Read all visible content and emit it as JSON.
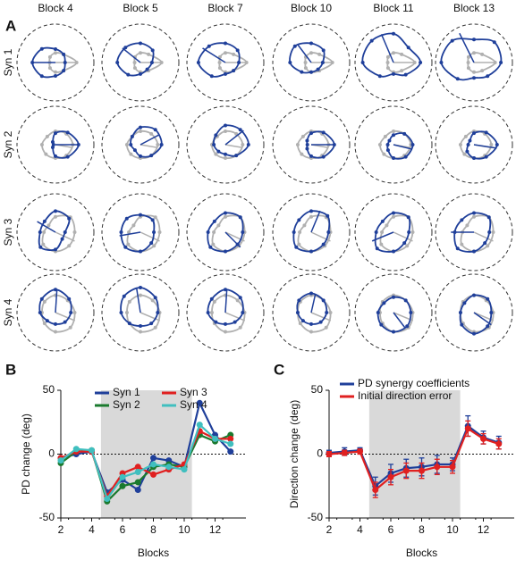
{
  "chart_data": [
    {
      "type": "polar",
      "label": "A",
      "columns": [
        "Block 4",
        "Block 5",
        "Block 7",
        "Block 10",
        "Block 11",
        "Block 13"
      ],
      "rows": [
        "Syn 1",
        "Syn 2",
        "Syn 3",
        "Syn 4"
      ],
      "rlim": [
        0,
        1
      ],
      "baseline_color": "#b0b0b0",
      "color": "#1f3f9a",
      "baseline": [
        [
          0.55,
          0.3,
          0.25,
          0.2,
          0.15,
          0.2,
          0.25,
          0.3
        ],
        [
          0.45,
          0.4,
          0.35,
          0.3,
          0.35,
          0.35,
          0.35,
          0.4
        ],
        [
          0.5,
          0.55,
          0.4,
          0.25,
          0.3,
          0.45,
          0.5,
          0.5
        ],
        [
          0.5,
          0.45,
          0.45,
          0.4,
          0.35,
          0.4,
          0.5,
          0.55
        ]
      ],
      "values": [
        [
          [
            0.25,
            0.3,
            0.35,
            0.5,
            0.6,
            0.5,
            0.35,
            0.3
          ],
          [
            0.3,
            0.45,
            0.5,
            0.55,
            0.6,
            0.45,
            0.3,
            0.25
          ],
          [
            0.35,
            0.45,
            0.5,
            0.6,
            0.7,
            0.5,
            0.3,
            0.3
          ],
          [
            0.3,
            0.45,
            0.5,
            0.6,
            0.55,
            0.35,
            0.25,
            0.25
          ],
          [
            0.7,
            0.55,
            0.75,
            0.8,
            0.8,
            0.5,
            0.3,
            0.45
          ],
          [
            0.7,
            0.75,
            0.6,
            0.8,
            0.85,
            0.6,
            0.4,
            0.5
          ]
        ],
        [
          [
            0.6,
            0.45,
            0.3,
            0.1,
            0.05,
            0.1,
            0.3,
            0.45
          ],
          [
            0.55,
            0.55,
            0.45,
            0.3,
            0.25,
            0.2,
            0.3,
            0.4
          ],
          [
            0.6,
            0.55,
            0.5,
            0.35,
            0.3,
            0.25,
            0.25,
            0.4
          ],
          [
            0.6,
            0.45,
            0.3,
            0.15,
            0.1,
            0.15,
            0.3,
            0.45
          ],
          [
            0.5,
            0.4,
            0.25,
            0.15,
            0.15,
            0.2,
            0.35,
            0.45
          ],
          [
            0.6,
            0.45,
            0.3,
            0.15,
            0.15,
            0.25,
            0.35,
            0.45
          ]
        ],
        [
          [
            0.25,
            0.5,
            0.55,
            0.4,
            0.4,
            0.55,
            0.45,
            0.25
          ],
          [
            0.35,
            0.45,
            0.45,
            0.5,
            0.5,
            0.55,
            0.5,
            0.4
          ],
          [
            0.45,
            0.55,
            0.5,
            0.4,
            0.45,
            0.55,
            0.5,
            0.45
          ],
          [
            0.45,
            0.6,
            0.55,
            0.45,
            0.45,
            0.55,
            0.5,
            0.45
          ],
          [
            0.4,
            0.55,
            0.5,
            0.4,
            0.45,
            0.6,
            0.5,
            0.4
          ],
          [
            0.4,
            0.55,
            0.5,
            0.45,
            0.5,
            0.6,
            0.5,
            0.4
          ]
        ],
        [
          [
            0.4,
            0.5,
            0.6,
            0.5,
            0.4,
            0.3,
            0.3,
            0.35
          ],
          [
            0.45,
            0.55,
            0.65,
            0.6,
            0.5,
            0.4,
            0.35,
            0.4
          ],
          [
            0.45,
            0.55,
            0.6,
            0.5,
            0.45,
            0.35,
            0.3,
            0.35
          ],
          [
            0.4,
            0.45,
            0.5,
            0.45,
            0.35,
            0.3,
            0.3,
            0.35
          ],
          [
            0.45,
            0.45,
            0.4,
            0.35,
            0.4,
            0.45,
            0.5,
            0.5
          ],
          [
            0.45,
            0.5,
            0.45,
            0.35,
            0.35,
            0.45,
            0.55,
            0.5
          ]
        ]
      ]
    },
    {
      "type": "line",
      "label": "B",
      "xlabel": "Blocks",
      "ylabel": "PD change (deg)",
      "x": [
        2,
        3,
        4,
        5,
        6,
        7,
        8,
        9,
        10,
        11,
        12,
        13
      ],
      "xlim": [
        2,
        14
      ],
      "xticks": [
        2,
        4,
        6,
        8,
        10,
        12
      ],
      "ylim": [
        -50,
        50
      ],
      "yticks": [
        -50,
        0,
        50
      ],
      "shade": [
        4.6,
        10.5
      ],
      "series": [
        {
          "name": "Syn 1",
          "color": "#1f3f9a",
          "values": [
            -3,
            0,
            2,
            -30,
            -20,
            -28,
            -3,
            -5,
            -10,
            40,
            15,
            2
          ]
        },
        {
          "name": "Syn 2",
          "color": "#1a7a2e",
          "values": [
            -7,
            2,
            3,
            -37,
            -25,
            -22,
            -10,
            -8,
            -10,
            15,
            10,
            15
          ]
        },
        {
          "name": "Syn 3",
          "color": "#e02020",
          "values": [
            -3,
            2,
            2,
            -33,
            -15,
            -10,
            -16,
            -12,
            -8,
            18,
            12,
            12
          ]
        },
        {
          "name": "Syn 4",
          "color": "#40bfbf",
          "values": [
            -5,
            4,
            3,
            -35,
            -18,
            -14,
            -8,
            -10,
            -12,
            23,
            12,
            8
          ]
        }
      ]
    },
    {
      "type": "line",
      "label": "C",
      "xlabel": "Blocks",
      "ylabel": "Direction change (deg)",
      "x": [
        2,
        3,
        4,
        5,
        6,
        7,
        8,
        9,
        10,
        11,
        12,
        13
      ],
      "xlim": [
        2,
        14
      ],
      "xticks": [
        2,
        4,
        6,
        8,
        10,
        12
      ],
      "ylim": [
        -50,
        50
      ],
      "yticks": [
        -50,
        0,
        50
      ],
      "shade": [
        4.6,
        10.5
      ],
      "series": [
        {
          "name": "PD synergy coefficients",
          "color": "#1f3f9a",
          "values": [
            1,
            2,
            3,
            -25,
            -15,
            -11,
            -10,
            -8,
            -8,
            22,
            13,
            9
          ],
          "errors": [
            2,
            3,
            2,
            7,
            7,
            7,
            7,
            7,
            5,
            8,
            5,
            5
          ]
        },
        {
          "name": "Initial direction error",
          "color": "#e02020",
          "values": [
            0,
            1,
            2,
            -28,
            -18,
            -13,
            -13,
            -10,
            -10,
            20,
            12,
            8
          ],
          "errors": [
            2,
            2,
            2,
            6,
            6,
            6,
            6,
            6,
            5,
            6,
            4,
            4
          ]
        }
      ]
    }
  ]
}
